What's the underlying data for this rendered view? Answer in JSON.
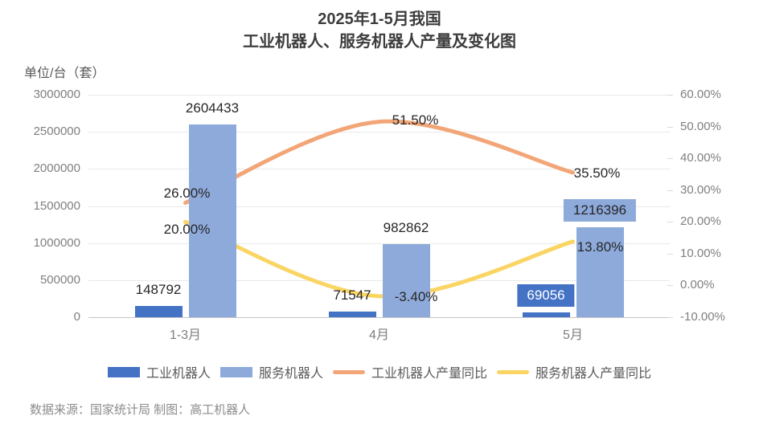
{
  "title": {
    "line1": "2025年1-5月我国",
    "line2": "工业机器人、服务机器人产量及变化图"
  },
  "footer": {
    "text": "数据来源：国家统计局 制图：高工机器人"
  },
  "chart_data": {
    "type": "combo-bar-line",
    "categories": [
      "1-3月",
      "4月",
      "5月"
    ],
    "bar_series": [
      {
        "name": "工业机器人",
        "color": "#4472C4",
        "values": [
          148792,
          71547,
          69056
        ],
        "labels": [
          "148792",
          "71547",
          "69056"
        ],
        "label_boxed": [
          false,
          false,
          true
        ],
        "boxed_label_text_color": "#FFFFFF"
      },
      {
        "name": "服务机器人",
        "color": "#8EAADB",
        "values": [
          2604433,
          982862,
          1216396
        ],
        "labels": [
          "2604433",
          "982862",
          "1216396"
        ],
        "label_boxed": [
          false,
          false,
          true
        ],
        "boxed_label_text_color": "#262626"
      }
    ],
    "line_series": [
      {
        "name": "工业机器人产量同比",
        "color": "#F2A678",
        "values": [
          26.0,
          51.5,
          35.5
        ],
        "labels": [
          "26.00%",
          "51.50%",
          "35.50%"
        ]
      },
      {
        "name": "服务机器人产量同比",
        "color": "#FAD564",
        "values": [
          20.0,
          -3.4,
          13.8
        ],
        "labels": [
          "20.00%",
          "-3.40%",
          "13.80%"
        ]
      }
    ],
    "left_axis": {
      "unit": "单位/台（套）",
      "min": 0,
      "max": 3000000,
      "step": 500000,
      "ticks": [
        "3000000",
        "2500000",
        "2000000",
        "1500000",
        "1000000",
        "500000",
        "0"
      ]
    },
    "right_axis": {
      "min": -10,
      "max": 60,
      "step": 10,
      "ticks": [
        "60.00%",
        "50.00%",
        "40.00%",
        "30.00%",
        "20.00%",
        "10.00%",
        "0.00%",
        "-10.00%"
      ]
    },
    "grid": "horizontal",
    "legend_position": "bottom"
  }
}
